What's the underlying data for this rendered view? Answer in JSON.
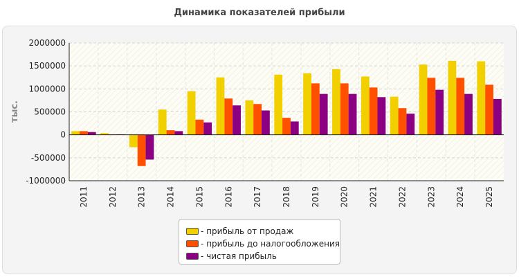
{
  "chart_data": {
    "type": "bar",
    "title": "Динамика показателей прибыли",
    "ylabel": "тыс.",
    "xlabel": "",
    "ylim": [
      -1000000,
      2000000
    ],
    "yticks": [
      2000000,
      1500000,
      1000000,
      500000,
      0,
      -500000,
      -1000000
    ],
    "grid": true,
    "legend_position": "bottom",
    "categories": [
      "2011",
      "2012",
      "2013",
      "2014",
      "2015",
      "2016",
      "2017",
      "2018",
      "2019",
      "2020",
      "2021",
      "2022",
      "2023",
      "2024",
      "2025"
    ],
    "series": [
      {
        "name": "- прибыль от продаж",
        "color": "#f2d000",
        "values": [
          80000,
          35000,
          -270000,
          550000,
          950000,
          1250000,
          750000,
          1310000,
          1340000,
          1430000,
          1270000,
          830000,
          1530000,
          1610000,
          1600000
        ]
      },
      {
        "name": "- прибыль до налогообложения",
        "color": "#ff5000",
        "values": [
          80000,
          10000,
          -680000,
          100000,
          330000,
          790000,
          670000,
          370000,
          1120000,
          1120000,
          1030000,
          580000,
          1240000,
          1240000,
          1090000
        ]
      },
      {
        "name": "- чистая прибыль",
        "color": "#8b0082",
        "values": [
          60000,
          10000,
          -540000,
          80000,
          270000,
          640000,
          530000,
          290000,
          890000,
          890000,
          820000,
          460000,
          980000,
          890000,
          780000
        ]
      }
    ]
  }
}
